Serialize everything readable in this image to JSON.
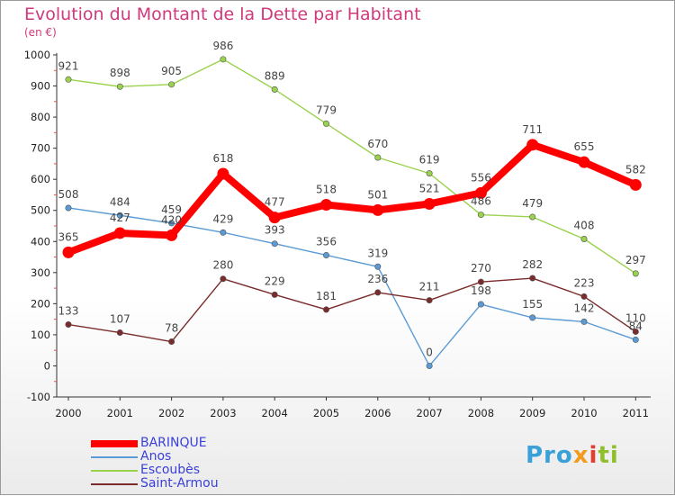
{
  "chart_data": {
    "type": "line",
    "title": "Evolution du Montant de la Dette par Habitant",
    "subtitle": "(en €)",
    "x": [
      "2000",
      "2001",
      "2002",
      "2003",
      "2004",
      "2005",
      "2006",
      "2007",
      "2008",
      "2009",
      "2010",
      "2011"
    ],
    "ylim": [
      -100,
      1000
    ],
    "yticks": [
      -100,
      0,
      100,
      200,
      300,
      400,
      500,
      600,
      700,
      800,
      900,
      1000
    ],
    "grid": false,
    "legend_position": "bottom-left",
    "series": [
      {
        "name": "BARINQUE",
        "color": "#ff0000",
        "values": [
          365,
          427,
          420,
          618,
          477,
          518,
          501,
          521,
          556,
          711,
          655,
          582
        ]
      },
      {
        "name": "Anos",
        "color": "#5b9bd5",
        "values": [
          508,
          484,
          459,
          429,
          393,
          356,
          319,
          0,
          198,
          155,
          142,
          84
        ]
      },
      {
        "name": "Escoubès",
        "color": "#9ad24d",
        "values": [
          921,
          898,
          905,
          986,
          889,
          779,
          670,
          619,
          486,
          479,
          408,
          297
        ]
      },
      {
        "name": "Saint-Armou",
        "color": "#7b2b2b",
        "values": [
          133,
          107,
          78,
          280,
          229,
          181,
          236,
          211,
          270,
          282,
          223,
          110
        ]
      }
    ]
  },
  "labels": {
    "anos_last": "84"
  },
  "logo": {
    "part1": "Pro",
    "part2": "x",
    "part3": "i",
    "part4": "ti"
  }
}
